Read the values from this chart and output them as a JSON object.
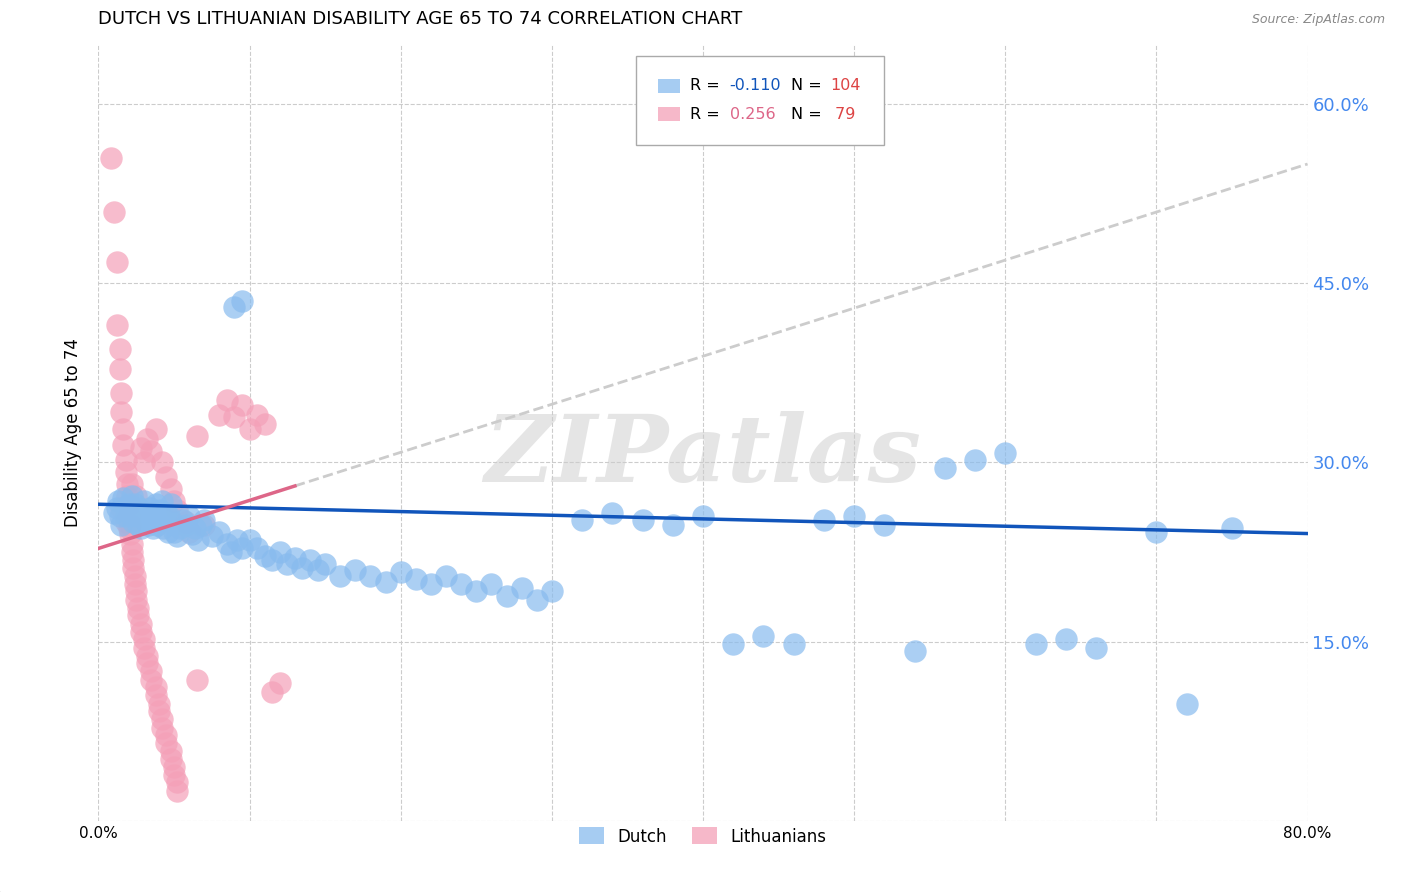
{
  "title": "DUTCH VS LITHUANIAN DISABILITY AGE 65 TO 74 CORRELATION CHART",
  "source": "Source: ZipAtlas.com",
  "ylabel": "Disability Age 65 to 74",
  "xlim": [
    0.0,
    0.8
  ],
  "ylim": [
    0.0,
    0.65
  ],
  "x_ticks": [
    0.0,
    0.1,
    0.2,
    0.3,
    0.4,
    0.5,
    0.6,
    0.7,
    0.8
  ],
  "y_ticks": [
    0.0,
    0.15,
    0.3,
    0.45,
    0.6
  ],
  "y_tick_labels": [
    "",
    "15.0%",
    "30.0%",
    "45.0%",
    "60.0%"
  ],
  "dutch_color": "#88bbee",
  "lithuanian_color": "#f4a0b8",
  "dutch_line_color": "#1155bb",
  "lithuanian_line_color": "#dd6688",
  "dutch_R": -0.11,
  "dutch_N": 104,
  "lithuanian_R": 0.256,
  "lithuanian_N": 79,
  "background_color": "#ffffff",
  "grid_color": "#cccccc",
  "title_fontsize": 13,
  "axis_label_fontsize": 12,
  "tick_label_color_right": "#4488ee",
  "watermark": "ZIPatlas",
  "dutch_points": [
    [
      0.01,
      0.258
    ],
    [
      0.012,
      0.262
    ],
    [
      0.013,
      0.268
    ],
    [
      0.014,
      0.255
    ],
    [
      0.015,
      0.248
    ],
    [
      0.016,
      0.27
    ],
    [
      0.018,
      0.255
    ],
    [
      0.019,
      0.26
    ],
    [
      0.02,
      0.265
    ],
    [
      0.021,
      0.258
    ],
    [
      0.022,
      0.272
    ],
    [
      0.023,
      0.25
    ],
    [
      0.024,
      0.265
    ],
    [
      0.025,
      0.255
    ],
    [
      0.026,
      0.248
    ],
    [
      0.027,
      0.262
    ],
    [
      0.028,
      0.245
    ],
    [
      0.029,
      0.258
    ],
    [
      0.03,
      0.268
    ],
    [
      0.031,
      0.252
    ],
    [
      0.032,
      0.255
    ],
    [
      0.033,
      0.248
    ],
    [
      0.034,
      0.262
    ],
    [
      0.035,
      0.258
    ],
    [
      0.036,
      0.245
    ],
    [
      0.037,
      0.252
    ],
    [
      0.038,
      0.265
    ],
    [
      0.039,
      0.248
    ],
    [
      0.04,
      0.255
    ],
    [
      0.041,
      0.26
    ],
    [
      0.042,
      0.268
    ],
    [
      0.043,
      0.245
    ],
    [
      0.044,
      0.252
    ],
    [
      0.045,
      0.258
    ],
    [
      0.046,
      0.242
    ],
    [
      0.047,
      0.255
    ],
    [
      0.048,
      0.265
    ],
    [
      0.049,
      0.25
    ],
    [
      0.05,
      0.242
    ],
    [
      0.052,
      0.238
    ],
    [
      0.054,
      0.245
    ],
    [
      0.056,
      0.252
    ],
    [
      0.058,
      0.248
    ],
    [
      0.06,
      0.255
    ],
    [
      0.062,
      0.24
    ],
    [
      0.064,
      0.245
    ],
    [
      0.066,
      0.235
    ],
    [
      0.068,
      0.248
    ],
    [
      0.07,
      0.252
    ],
    [
      0.075,
      0.238
    ],
    [
      0.08,
      0.242
    ],
    [
      0.09,
      0.43
    ],
    [
      0.095,
      0.435
    ],
    [
      0.085,
      0.232
    ],
    [
      0.088,
      0.225
    ],
    [
      0.092,
      0.235
    ],
    [
      0.095,
      0.228
    ],
    [
      0.1,
      0.235
    ],
    [
      0.105,
      0.228
    ],
    [
      0.11,
      0.222
    ],
    [
      0.115,
      0.218
    ],
    [
      0.12,
      0.225
    ],
    [
      0.125,
      0.215
    ],
    [
      0.13,
      0.22
    ],
    [
      0.135,
      0.212
    ],
    [
      0.14,
      0.218
    ],
    [
      0.145,
      0.21
    ],
    [
      0.15,
      0.215
    ],
    [
      0.16,
      0.205
    ],
    [
      0.17,
      0.21
    ],
    [
      0.18,
      0.205
    ],
    [
      0.19,
      0.2
    ],
    [
      0.2,
      0.208
    ],
    [
      0.21,
      0.202
    ],
    [
      0.22,
      0.198
    ],
    [
      0.23,
      0.205
    ],
    [
      0.24,
      0.198
    ],
    [
      0.25,
      0.192
    ],
    [
      0.26,
      0.198
    ],
    [
      0.27,
      0.188
    ],
    [
      0.28,
      0.195
    ],
    [
      0.29,
      0.185
    ],
    [
      0.3,
      0.192
    ],
    [
      0.32,
      0.252
    ],
    [
      0.34,
      0.258
    ],
    [
      0.36,
      0.252
    ],
    [
      0.38,
      0.248
    ],
    [
      0.4,
      0.255
    ],
    [
      0.42,
      0.148
    ],
    [
      0.44,
      0.155
    ],
    [
      0.46,
      0.148
    ],
    [
      0.48,
      0.252
    ],
    [
      0.5,
      0.255
    ],
    [
      0.52,
      0.248
    ],
    [
      0.54,
      0.142
    ],
    [
      0.56,
      0.295
    ],
    [
      0.58,
      0.302
    ],
    [
      0.6,
      0.308
    ],
    [
      0.62,
      0.148
    ],
    [
      0.64,
      0.152
    ],
    [
      0.66,
      0.145
    ],
    [
      0.7,
      0.242
    ],
    [
      0.72,
      0.098
    ],
    [
      0.75,
      0.245
    ]
  ],
  "lithuanian_points": [
    [
      0.008,
      0.555
    ],
    [
      0.01,
      0.51
    ],
    [
      0.012,
      0.468
    ],
    [
      0.012,
      0.415
    ],
    [
      0.014,
      0.395
    ],
    [
      0.014,
      0.378
    ],
    [
      0.015,
      0.358
    ],
    [
      0.015,
      0.342
    ],
    [
      0.016,
      0.328
    ],
    [
      0.016,
      0.315
    ],
    [
      0.018,
      0.302
    ],
    [
      0.018,
      0.292
    ],
    [
      0.019,
      0.282
    ],
    [
      0.019,
      0.272
    ],
    [
      0.02,
      0.265
    ],
    [
      0.02,
      0.255
    ],
    [
      0.021,
      0.248
    ],
    [
      0.021,
      0.24
    ],
    [
      0.022,
      0.232
    ],
    [
      0.022,
      0.225
    ],
    [
      0.023,
      0.218
    ],
    [
      0.023,
      0.212
    ],
    [
      0.024,
      0.205
    ],
    [
      0.024,
      0.198
    ],
    [
      0.025,
      0.192
    ],
    [
      0.025,
      0.185
    ],
    [
      0.026,
      0.178
    ],
    [
      0.026,
      0.172
    ],
    [
      0.028,
      0.165
    ],
    [
      0.028,
      0.158
    ],
    [
      0.03,
      0.152
    ],
    [
      0.03,
      0.145
    ],
    [
      0.032,
      0.138
    ],
    [
      0.032,
      0.132
    ],
    [
      0.035,
      0.125
    ],
    [
      0.035,
      0.118
    ],
    [
      0.038,
      0.112
    ],
    [
      0.038,
      0.105
    ],
    [
      0.04,
      0.098
    ],
    [
      0.04,
      0.092
    ],
    [
      0.042,
      0.085
    ],
    [
      0.042,
      0.078
    ],
    [
      0.045,
      0.072
    ],
    [
      0.045,
      0.065
    ],
    [
      0.048,
      0.058
    ],
    [
      0.048,
      0.052
    ],
    [
      0.05,
      0.045
    ],
    [
      0.05,
      0.038
    ],
    [
      0.052,
      0.032
    ],
    [
      0.052,
      0.025
    ],
    [
      0.015,
      0.262
    ],
    [
      0.018,
      0.25
    ],
    [
      0.02,
      0.245
    ],
    [
      0.022,
      0.282
    ],
    [
      0.025,
      0.272
    ],
    [
      0.028,
      0.312
    ],
    [
      0.03,
      0.3
    ],
    [
      0.032,
      0.32
    ],
    [
      0.035,
      0.31
    ],
    [
      0.038,
      0.328
    ],
    [
      0.042,
      0.3
    ],
    [
      0.045,
      0.288
    ],
    [
      0.048,
      0.278
    ],
    [
      0.05,
      0.268
    ],
    [
      0.052,
      0.26
    ],
    [
      0.058,
      0.25
    ],
    [
      0.06,
      0.242
    ],
    [
      0.065,
      0.322
    ],
    [
      0.07,
      0.248
    ],
    [
      0.08,
      0.34
    ],
    [
      0.085,
      0.352
    ],
    [
      0.09,
      0.338
    ],
    [
      0.095,
      0.348
    ],
    [
      0.1,
      0.328
    ],
    [
      0.105,
      0.34
    ],
    [
      0.11,
      0.332
    ],
    [
      0.115,
      0.108
    ],
    [
      0.12,
      0.115
    ],
    [
      0.065,
      0.118
    ]
  ]
}
